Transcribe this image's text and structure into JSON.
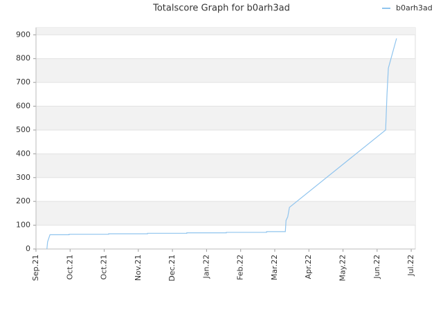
{
  "chart_data": {
    "type": "line",
    "title": "Totalscore Graph for b0arh3ad",
    "x": [
      0.32,
      0.34,
      0.41,
      0.97,
      0.97,
      2.13,
      2.13,
      3.27,
      3.27,
      4.42,
      4.42,
      5.58,
      5.58,
      6.76,
      6.76,
      7.31,
      7.33,
      7.38,
      7.43,
      10.25,
      10.29,
      10.33,
      10.57
    ],
    "series": [
      {
        "name": "b0arh3ad",
        "color": "#8fc4ee",
        "values": [
          0,
          30,
          60,
          60,
          62,
          62,
          64,
          64,
          66,
          66,
          68,
          68,
          70,
          70,
          73,
          73,
          120,
          135,
          175,
          500,
          650,
          760,
          885
        ]
      }
    ],
    "xlim": [
      0,
      11.12
    ],
    "xticks": [
      {
        "value": 0,
        "label": "Sep.21"
      },
      {
        "value": 1,
        "label": "Oct.21"
      },
      {
        "value": 2,
        "label": "Oct.21"
      },
      {
        "value": 3,
        "label": "Nov.21"
      },
      {
        "value": 4,
        "label": "Dec.21"
      },
      {
        "value": 5,
        "label": "Jan.22"
      },
      {
        "value": 6,
        "label": "Feb.22"
      },
      {
        "value": 7,
        "label": "Mar.22"
      },
      {
        "value": 8,
        "label": "Apr.22"
      },
      {
        "value": 9,
        "label": "May.22"
      },
      {
        "value": 10,
        "label": "Jun.22"
      },
      {
        "value": 11,
        "label": "Jul.22"
      }
    ],
    "ylim": [
      0,
      930
    ],
    "yticks": [
      0,
      100,
      200,
      300,
      400,
      500,
      600,
      700,
      800,
      900
    ],
    "grid": true,
    "legend": "top-right"
  }
}
